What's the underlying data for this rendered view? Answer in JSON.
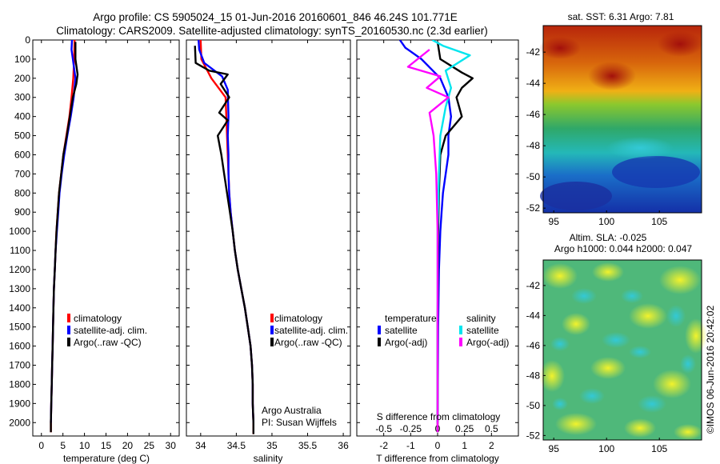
{
  "header": {
    "line1": "Argo profile: CS 5905024_15 01-Jun-2016 20160601_846 46.24S 101.771E",
    "line2": "Climatology: CARS2009. Satellite-adjusted climatology: synTS_20160530.nc (2.3d earlier)"
  },
  "colors": {
    "climatology": "#ff0000",
    "satellite": "#0000ff",
    "argo": "#000000",
    "satellite_s": "#00e5ee",
    "argo_s": "#ff00ff"
  },
  "credit": "©IMOS 06-Jun-2016 20:42:02",
  "chart_data": [
    {
      "type": "line",
      "id": "temperature",
      "xlabel": "temperature (deg C)",
      "ylabel": "",
      "xlim": [
        -2,
        32
      ],
      "ylim": [
        2070,
        0
      ],
      "xticks": [
        0,
        5,
        10,
        15,
        20,
        25,
        30
      ],
      "yticks": [
        0,
        100,
        200,
        300,
        400,
        500,
        600,
        700,
        800,
        900,
        1000,
        1100,
        1200,
        1300,
        1400,
        1500,
        1600,
        1700,
        1800,
        1900,
        2000
      ],
      "legend": [
        "climatology",
        "satellite-adj. clim.",
        "Argo(..raw -QC)"
      ],
      "series": [
        {
          "name": "climatology",
          "color": "#ff0000",
          "points": [
            [
              7.7,
              0
            ],
            [
              7.6,
              100
            ],
            [
              7.4,
              200
            ],
            [
              7.0,
              300
            ],
            [
              6.5,
              400
            ],
            [
              5.8,
              500
            ],
            [
              5.1,
              600
            ],
            [
              4.6,
              700
            ],
            [
              4.1,
              800
            ],
            [
              3.8,
              900
            ],
            [
              3.5,
              1000
            ],
            [
              3.3,
              1100
            ],
            [
              3.1,
              1200
            ],
            [
              2.9,
              1300
            ],
            [
              2.8,
              1400
            ],
            [
              2.7,
              1500
            ],
            [
              2.6,
              1600
            ],
            [
              2.5,
              1700
            ],
            [
              2.4,
              1800
            ],
            [
              2.3,
              1900
            ],
            [
              2.2,
              2000
            ],
            [
              2.2,
              2050
            ]
          ]
        },
        {
          "name": "satellite-adj. clim.",
          "color": "#0000ff",
          "points": [
            [
              7.1,
              0
            ],
            [
              7.0,
              50
            ],
            [
              7.3,
              100
            ],
            [
              7.9,
              200
            ],
            [
              7.5,
              300
            ],
            [
              6.8,
              400
            ],
            [
              6.0,
              500
            ],
            [
              5.3,
              600
            ],
            [
              4.7,
              700
            ],
            [
              4.2,
              800
            ],
            [
              3.9,
              900
            ],
            [
              3.6,
              1000
            ],
            [
              3.3,
              1100
            ],
            [
              3.1,
              1200
            ],
            [
              2.9,
              1300
            ],
            [
              2.8,
              1400
            ],
            [
              2.7,
              1500
            ],
            [
              2.6,
              1600
            ],
            [
              2.5,
              1700
            ],
            [
              2.4,
              1800
            ],
            [
              2.3,
              1900
            ],
            [
              2.2,
              2000
            ]
          ]
        },
        {
          "name": "Argo(..raw -QC)",
          "color": "#000000",
          "points": [
            [
              7.9,
              10
            ],
            [
              7.9,
              100
            ],
            [
              8.4,
              180
            ],
            [
              8.1,
              230
            ],
            [
              7.3,
              300
            ],
            [
              6.6,
              400
            ],
            [
              5.9,
              500
            ],
            [
              5.1,
              600
            ],
            [
              4.6,
              700
            ],
            [
              4.1,
              800
            ],
            [
              3.8,
              900
            ],
            [
              3.5,
              1000
            ],
            [
              3.3,
              1100
            ],
            [
              3.1,
              1200
            ],
            [
              2.9,
              1300
            ],
            [
              2.8,
              1400
            ],
            [
              2.7,
              1500
            ],
            [
              2.6,
              1600
            ],
            [
              2.5,
              1700
            ],
            [
              2.4,
              1800
            ],
            [
              2.3,
              1900
            ],
            [
              2.2,
              2000
            ],
            [
              2.2,
              2050
            ]
          ]
        }
      ]
    },
    {
      "type": "line",
      "id": "salinity",
      "xlabel": "salinity",
      "ylabel": "",
      "xlim": [
        33.8,
        36.1
      ],
      "ylim": [
        2070,
        0
      ],
      "xticks": [
        34,
        34.5,
        35,
        35.5,
        36
      ],
      "legend": [
        "climatology",
        "satellite-adj. clim.",
        "Argo(..raw -QC)"
      ],
      "annotation": [
        "Argo Australia",
        "PI: Susan Wijffels"
      ],
      "series": [
        {
          "name": "climatology",
          "color": "#ff0000",
          "points": [
            [
              34.0,
              0
            ],
            [
              34.01,
              100
            ],
            [
              34.15,
              200
            ],
            [
              34.35,
              300
            ],
            [
              34.36,
              400
            ],
            [
              34.37,
              500
            ],
            [
              34.38,
              600
            ],
            [
              34.39,
              700
            ],
            [
              34.4,
              800
            ],
            [
              34.42,
              900
            ],
            [
              34.45,
              1000
            ],
            [
              34.48,
              1100
            ],
            [
              34.52,
              1200
            ],
            [
              34.57,
              1300
            ],
            [
              34.62,
              1400
            ],
            [
              34.66,
              1500
            ],
            [
              34.7,
              1600
            ],
            [
              34.72,
              1700
            ],
            [
              34.73,
              1800
            ],
            [
              34.73,
              1900
            ],
            [
              34.74,
              2000
            ],
            [
              34.74,
              2060
            ]
          ]
        },
        {
          "name": "satellite-adj. clim.",
          "color": "#0000ff",
          "points": [
            [
              33.97,
              0
            ],
            [
              33.98,
              50
            ],
            [
              34.05,
              120
            ],
            [
              34.3,
              190
            ],
            [
              34.38,
              260
            ],
            [
              34.39,
              400
            ],
            [
              34.38,
              500
            ],
            [
              34.39,
              600
            ],
            [
              34.39,
              700
            ],
            [
              34.4,
              800
            ],
            [
              34.42,
              900
            ],
            [
              34.45,
              1000
            ],
            [
              34.48,
              1100
            ],
            [
              34.52,
              1200
            ],
            [
              34.57,
              1300
            ],
            [
              34.62,
              1400
            ],
            [
              34.66,
              1500
            ],
            [
              34.7,
              1600
            ],
            [
              34.72,
              1700
            ],
            [
              34.73,
              1800
            ],
            [
              34.73,
              1900
            ],
            [
              34.74,
              2000
            ]
          ]
        },
        {
          "name": "Argo(..raw -QC)",
          "color": "#000000",
          "points": [
            [
              33.92,
              30
            ],
            [
              33.93,
              120
            ],
            [
              34.12,
              160
            ],
            [
              34.38,
              180
            ],
            [
              34.28,
              230
            ],
            [
              34.4,
              300
            ],
            [
              34.26,
              380
            ],
            [
              34.38,
              420
            ],
            [
              34.24,
              500
            ],
            [
              34.29,
              600
            ],
            [
              34.33,
              700
            ],
            [
              34.37,
              800
            ],
            [
              34.41,
              900
            ],
            [
              34.45,
              1000
            ],
            [
              34.48,
              1100
            ],
            [
              34.52,
              1200
            ],
            [
              34.57,
              1300
            ],
            [
              34.62,
              1400
            ],
            [
              34.66,
              1500
            ],
            [
              34.7,
              1600
            ],
            [
              34.72,
              1700
            ],
            [
              34.73,
              1800
            ],
            [
              34.73,
              1900
            ],
            [
              34.74,
              2000
            ],
            [
              34.74,
              2060
            ]
          ]
        }
      ]
    },
    {
      "type": "line",
      "id": "difference",
      "xlabel": "T difference from climatology",
      "top_axis_label": "S difference from climatology",
      "xlim": [
        -3,
        3
      ],
      "ylim": [
        2070,
        0
      ],
      "xticks": [
        -2,
        -1,
        0,
        1,
        2
      ],
      "s_xticks": [
        "-0.5",
        "-0.25",
        "0",
        "0.25",
        "0.5"
      ],
      "s_xtick_values": [
        -2,
        -1,
        0,
        1,
        2
      ],
      "legend_temperature": {
        "title": "temperature",
        "satellite": "satellite",
        "argo": "Argo(-adj)"
      },
      "legend_salinity": {
        "title": "salinity",
        "satellite": "satellite",
        "argo": "Argo(-adj)"
      },
      "series": [
        {
          "name": "satellite",
          "group": "temperature",
          "color": "#0000ff",
          "points": [
            [
              -1.4,
              0
            ],
            [
              -1.2,
              40
            ],
            [
              -0.6,
              100
            ],
            [
              0.1,
              200
            ],
            [
              0.4,
              300
            ],
            [
              0.5,
              400
            ],
            [
              0.4,
              500
            ],
            [
              0.4,
              600
            ],
            [
              0.3,
              700
            ],
            [
              0.2,
              800
            ],
            [
              0.15,
              900
            ],
            [
              0.1,
              1000
            ],
            [
              0.05,
              1200
            ],
            [
              0.02,
              1500
            ],
            [
              0.0,
              2000
            ]
          ]
        },
        {
          "name": "Argo(-adj)",
          "group": "temperature",
          "color": "#000000",
          "points": [
            [
              0.0,
              10
            ],
            [
              0.1,
              100
            ],
            [
              0.9,
              170
            ],
            [
              1.3,
              200
            ],
            [
              0.9,
              250
            ],
            [
              0.7,
              300
            ],
            [
              0.9,
              400
            ],
            [
              0.3,
              500
            ],
            [
              0.1,
              600
            ],
            [
              0.05,
              800
            ],
            [
              0.02,
              1000
            ],
            [
              0.0,
              1500
            ],
            [
              0.0,
              2050
            ]
          ]
        },
        {
          "name": "satellite",
          "group": "salinity",
          "color": "#00e5ee",
          "points": [
            [
              -0.2,
              0
            ],
            [
              0.2,
              30
            ],
            [
              1.2,
              80
            ],
            [
              0.3,
              160
            ],
            [
              0.5,
              250
            ],
            [
              0.3,
              350
            ],
            [
              0.1,
              500
            ],
            [
              0.05,
              700
            ],
            [
              0.0,
              1000
            ],
            [
              0.0,
              1500
            ],
            [
              0.0,
              2000
            ]
          ]
        },
        {
          "name": "Argo(-adj)",
          "group": "salinity",
          "color": "#ff00ff",
          "points": [
            [
              -0.3,
              50
            ],
            [
              -1.1,
              140
            ],
            [
              0.1,
              190
            ],
            [
              -0.4,
              250
            ],
            [
              0.4,
              300
            ],
            [
              -0.3,
              380
            ],
            [
              -0.15,
              500
            ],
            [
              -0.05,
              700
            ],
            [
              0.0,
              1000
            ],
            [
              0.0,
              1500
            ],
            [
              0.0,
              2050
            ]
          ]
        }
      ]
    },
    {
      "type": "heatmap",
      "id": "sst-map",
      "title": "sat. SST: 6.31 Argo: 7.81",
      "xticks": [
        "95",
        "100",
        "105"
      ],
      "yticks": [
        "-42",
        "-44",
        "-46",
        "-48",
        "-50",
        "-52"
      ],
      "xlim": [
        94,
        109
      ],
      "ylim": [
        -52.3,
        -40.3
      ],
      "description": "SST field: warm (red/orange) north, cooling to green/cyan/blue southward"
    },
    {
      "type": "heatmap",
      "id": "sla-map",
      "title_line1": "Altim. SLA: -0.025",
      "title_line2": "Argo h1000: 0.044 h2000: 0.047",
      "xticks": [
        "95",
        "100",
        "105"
      ],
      "yticks": [
        "-42",
        "-44",
        "-46",
        "-48",
        "-50",
        "-52"
      ],
      "xlim": [
        94,
        109
      ],
      "ylim": [
        -52.3,
        -40.3
      ],
      "description": "Sea level anomaly field: green/teal background with yellow and cyan blobs"
    }
  ]
}
